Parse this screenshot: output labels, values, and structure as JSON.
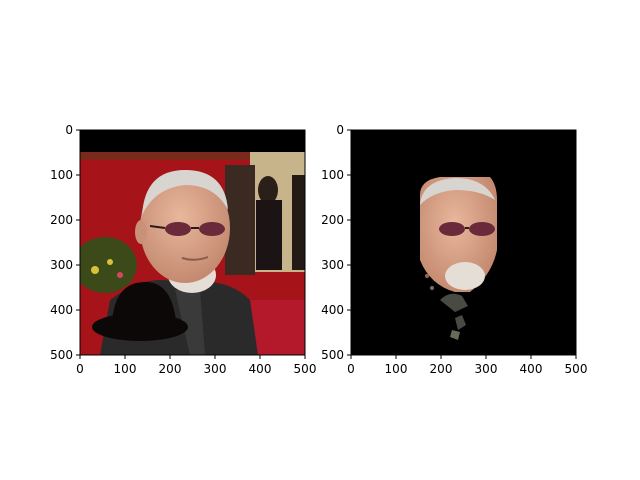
{
  "panels": [
    {
      "name": "left-image-panel",
      "description_tag": "original",
      "xticks": [
        "0",
        "100",
        "200",
        "300",
        "400",
        "500"
      ],
      "yticks": [
        "0",
        "100",
        "200",
        "300",
        "400",
        "500"
      ]
    },
    {
      "name": "right-image-panel",
      "description_tag": "segmented",
      "xticks": [
        "0",
        "100",
        "200",
        "300",
        "400",
        "500"
      ],
      "yticks": [
        "0",
        "100",
        "200",
        "300",
        "400",
        "500"
      ]
    }
  ],
  "colors": {
    "background": "#ffffff",
    "top_band": "#000000",
    "red_wall": "#a61419",
    "red_carpet": "#b3192b",
    "jacket": "#2a2a2a",
    "skin": "#d9a48a",
    "hair": "#d8d4d0",
    "hat": "#0c0808",
    "mask_bg": "#000000"
  }
}
